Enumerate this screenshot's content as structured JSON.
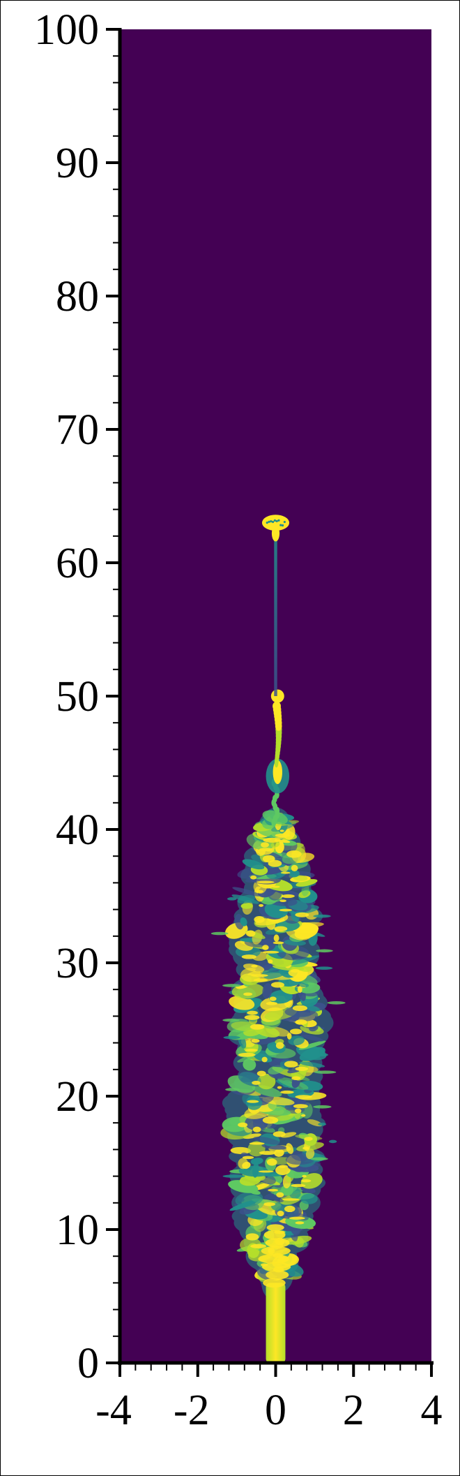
{
  "chart_data": {
    "type": "heatmap",
    "title": "",
    "xlabel": "",
    "ylabel": "",
    "xlim": [
      -4,
      4
    ],
    "ylim": [
      0,
      100
    ],
    "x_ticks": [
      -4,
      -2,
      0,
      2,
      4
    ],
    "y_ticks": [
      0,
      10,
      20,
      30,
      40,
      50,
      60,
      70,
      80,
      90,
      100
    ],
    "x_tick_labels": [
      "-4",
      "-2",
      "0",
      "2",
      "4"
    ],
    "y_tick_labels": [
      "0",
      "10",
      "20",
      "30",
      "40",
      "50",
      "60",
      "70",
      "80",
      "90",
      "100"
    ],
    "x_minor_step": 0.4,
    "y_minor_step": 2,
    "grid": false,
    "colormap": "viridis",
    "background_color": "#440154",
    "plume_colors": [
      "#3b528b",
      "#21918c",
      "#5ec962",
      "#b5de2b",
      "#fde725"
    ],
    "features": {
      "nozzle_column": {
        "x_range": [
          -0.25,
          0.25
        ],
        "y_range": [
          0,
          6
        ]
      },
      "turbulent_plume": {
        "y_range": [
          6,
          41
        ],
        "max_half_width": 1.2
      },
      "lower_puff": {
        "center_y": 50,
        "bulb_y": 44
      },
      "upper_cap": {
        "center_y": 63,
        "half_width": 0.35
      }
    }
  }
}
